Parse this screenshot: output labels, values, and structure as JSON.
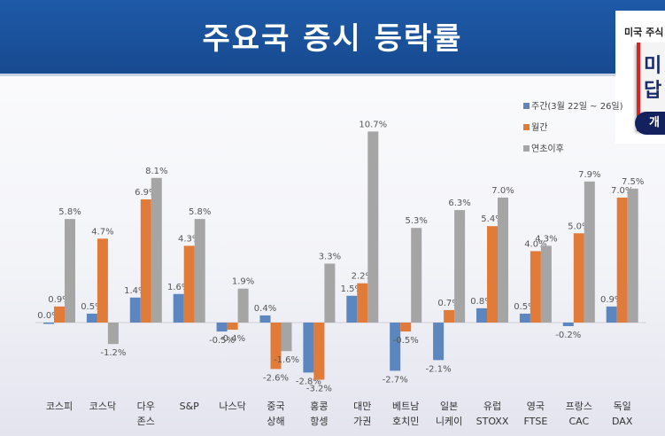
{
  "header": {
    "title": "주요국 증시 등락률"
  },
  "ad": {
    "top_text": "미국 주식",
    "big1": "미",
    "big2": "답",
    "button": "개"
  },
  "chart_data": {
    "type": "bar",
    "title": "주요국 증시 등락률",
    "categories": [
      [
        "코스피"
      ],
      [
        "코스닥"
      ],
      [
        "다우",
        "존스"
      ],
      [
        "S&P"
      ],
      [
        "나스닥"
      ],
      [
        "중국",
        "상해"
      ],
      [
        "홍콩",
        "항셍"
      ],
      [
        "대만",
        "가권"
      ],
      [
        "베트남",
        "호치민"
      ],
      [
        "일본",
        "니케이"
      ],
      [
        "유럽",
        "STOXX"
      ],
      [
        "영국",
        "FTSE"
      ],
      [
        "프랑스",
        "CAC"
      ],
      [
        "독일",
        "DAX"
      ]
    ],
    "series": [
      {
        "name": "주간(3월 22일 ~ 26일)",
        "color": "#5b86c0",
        "values": [
          0.0,
          0.5,
          1.4,
          1.6,
          -0.5,
          0.4,
          -2.8,
          1.5,
          -2.7,
          -2.1,
          0.8,
          0.5,
          -0.2,
          0.9
        ]
      },
      {
        "name": "월간",
        "color": "#e07b39",
        "values": [
          0.9,
          4.7,
          6.9,
          4.3,
          -0.4,
          -2.6,
          -3.2,
          2.2,
          -0.5,
          0.7,
          5.4,
          4.0,
          5.0,
          7.0
        ]
      },
      {
        "name": "연초이후",
        "color": "#a6a5a6",
        "values": [
          5.8,
          -1.2,
          8.1,
          5.8,
          1.9,
          -1.6,
          3.3,
          10.7,
          5.3,
          6.3,
          7.0,
          4.3,
          7.9,
          7.5
        ]
      }
    ],
    "labels": [
      [
        "0.0%",
        "0.5%",
        "1.4%",
        "1.6%",
        "-0.5%",
        "0.4%",
        "-2.8%",
        "1.5%",
        "-2.7%",
        "-2.1%",
        "0.8%",
        "0.5%",
        "-0.2%",
        "0.9%"
      ],
      [
        "0.9%",
        "4.7%",
        "6.9%",
        "4.3%",
        "-0.4%",
        "-2.6%",
        "-3.2%",
        "2.2%",
        "-0.5%",
        "0.7%",
        "5.4%",
        "4.0%",
        "5.0%",
        "7.0%"
      ],
      [
        "5.8%",
        "-1.2%",
        "8.1%",
        "5.8%",
        "1.9%",
        "-1.6%",
        "3.3%",
        "10.7%",
        "5.3%",
        "6.3%",
        "7.0%",
        "4.3%",
        "7.9%",
        "7.5%"
      ]
    ],
    "legend_position": "top-right",
    "ylim": [
      -4,
      11
    ]
  }
}
